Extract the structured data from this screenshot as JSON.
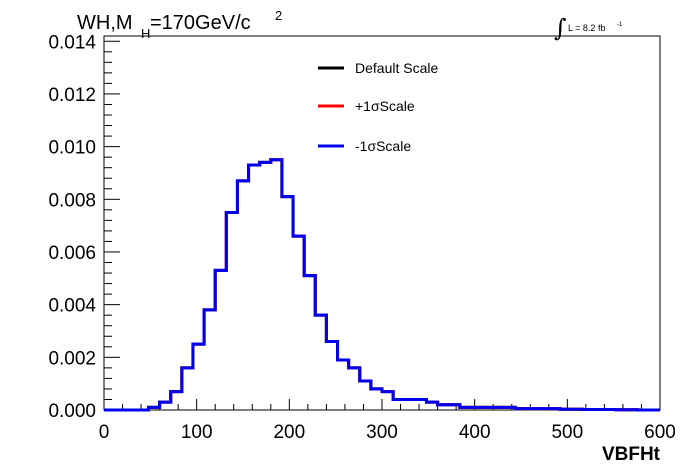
{
  "header": {
    "title_main": "WH,M",
    "title_sub": "H",
    "title_rest": "=170GeV/c",
    "title_sup": "2",
    "lumi_integral": "∫",
    "lumi_text": "L = 8.2 fb",
    "lumi_sup": "-1"
  },
  "chart_data": {
    "type": "line",
    "title": "WH,MH=170GeV/c 2",
    "xlabel": "VBFHt",
    "ylabel": "",
    "xlim": [
      0,
      600
    ],
    "ylim": [
      0,
      0.0142
    ],
    "x_ticks": [
      "0",
      "100",
      "200",
      "300",
      "400",
      "500",
      "600"
    ],
    "y_ticks": [
      "0.000",
      "0.002",
      "0.004",
      "0.006",
      "0.008",
      "0.010",
      "0.012",
      "0.014"
    ],
    "grid": false,
    "legend_position": "top-center",
    "bin_edges": [
      0,
      12,
      24,
      36,
      48,
      60,
      72,
      84,
      96,
      108,
      120,
      132,
      144,
      156,
      168,
      180,
      192,
      204,
      216,
      228,
      240,
      252,
      264,
      276,
      288,
      300,
      312,
      324,
      336,
      348,
      360,
      372,
      384,
      396,
      408,
      420,
      432,
      444,
      456,
      468,
      480,
      492,
      504,
      516,
      528,
      540,
      552,
      564,
      576,
      588,
      600
    ],
    "series": [
      {
        "name": "Default Scale",
        "color": "#000000",
        "values": [
          0,
          0,
          0,
          0,
          0.0001,
          0.0003,
          0.0007,
          0.0016,
          0.0025,
          0.0038,
          0.0053,
          0.0075,
          0.0087,
          0.0093,
          0.0094,
          0.0095,
          0.0081,
          0.0066,
          0.0051,
          0.0036,
          0.0026,
          0.0019,
          0.0016,
          0.0011,
          0.0008,
          0.0007,
          0.0004,
          0.0004,
          0.0004,
          0.0003,
          0.0002,
          0.0002,
          0.0001,
          0.0001,
          0.0001,
          0.0001,
          0.0001,
          5e-05,
          5e-05,
          5e-05,
          5e-05,
          3e-05,
          3e-05,
          2e-05,
          2e-05,
          2e-05,
          1e-05,
          1e-05,
          0,
          0
        ]
      },
      {
        "name": "+1σScale",
        "color": "#ff0000",
        "values": [
          0,
          0,
          0,
          0,
          0.0001,
          0.0003,
          0.0007,
          0.0016,
          0.0025,
          0.0038,
          0.0053,
          0.0075,
          0.0087,
          0.0093,
          0.0094,
          0.0095,
          0.0081,
          0.0066,
          0.0051,
          0.0036,
          0.0026,
          0.0019,
          0.0016,
          0.0011,
          0.0008,
          0.0007,
          0.0004,
          0.0004,
          0.0004,
          0.0003,
          0.0002,
          0.0002,
          0.0001,
          0.0001,
          0.0001,
          0.0001,
          0.0001,
          5e-05,
          5e-05,
          5e-05,
          5e-05,
          3e-05,
          3e-05,
          2e-05,
          2e-05,
          2e-05,
          1e-05,
          1e-05,
          0,
          0
        ]
      },
      {
        "name": "-1σScale",
        "color": "#0000ee",
        "values": [
          0,
          0,
          0,
          0,
          0.0001,
          0.0003,
          0.0007,
          0.0016,
          0.0025,
          0.0038,
          0.0053,
          0.0075,
          0.0087,
          0.0093,
          0.0094,
          0.0095,
          0.0081,
          0.0066,
          0.0051,
          0.0036,
          0.0026,
          0.0019,
          0.0016,
          0.0011,
          0.0008,
          0.0007,
          0.0004,
          0.0004,
          0.0004,
          0.0003,
          0.0002,
          0.0002,
          0.0001,
          0.0001,
          0.0001,
          0.0001,
          0.0001,
          5e-05,
          5e-05,
          5e-05,
          5e-05,
          3e-05,
          3e-05,
          2e-05,
          2e-05,
          2e-05,
          1e-05,
          1e-05,
          0,
          0
        ]
      }
    ]
  }
}
